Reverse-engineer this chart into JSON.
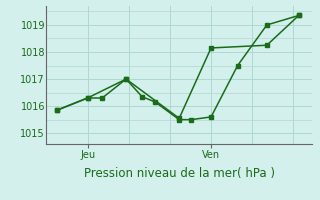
{
  "background_color": "#d4f0ec",
  "grid_color": "#afd8d2",
  "line_color": "#1a6b1a",
  "axis_color": "#666666",
  "title": "Pression niveau de la mer( hPa )",
  "ylabel_values": [
    1015,
    1016,
    1017,
    1018,
    1019
  ],
  "x_tick_positions": [
    0.155,
    0.62
  ],
  "x_tick_labels": [
    "Jeu",
    "Ven"
  ],
  "ylim": [
    1014.6,
    1019.7
  ],
  "xlim": [
    0.0,
    1.0
  ],
  "series1_x": [
    0.04,
    0.155,
    0.21,
    0.3,
    0.36,
    0.41,
    0.5,
    0.545,
    0.62,
    0.72,
    0.83,
    0.95
  ],
  "series1_y": [
    1015.85,
    1016.3,
    1016.3,
    1017.0,
    1016.35,
    1016.15,
    1015.5,
    1015.5,
    1015.6,
    1017.5,
    1019.0,
    1019.35
  ],
  "series2_x": [
    0.04,
    0.155,
    0.3,
    0.5,
    0.62,
    0.83,
    0.95
  ],
  "series2_y": [
    1015.85,
    1016.3,
    1017.0,
    1015.55,
    1018.15,
    1018.25,
    1019.35
  ],
  "marker_size": 2.5,
  "line_width": 1.1,
  "title_fontsize": 8.5,
  "tick_fontsize": 7
}
